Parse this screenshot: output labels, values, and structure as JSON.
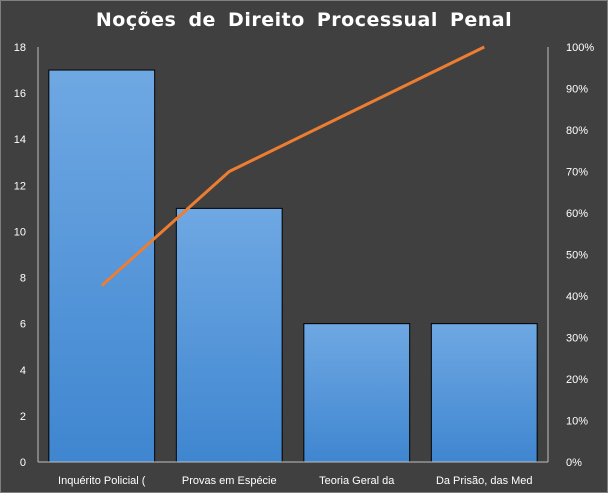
{
  "chart_data": {
    "type": "bar",
    "title": "Noções de Direito Processual Penal",
    "categories": [
      "Inquérito Policial (",
      "Provas em Espécie",
      "Teoria Geral da",
      "Da Prisão, das Med"
    ],
    "series": [
      {
        "type": "bar",
        "axis": "left",
        "values": [
          17,
          11,
          6,
          6
        ]
      },
      {
        "type": "line",
        "axis": "right",
        "values": [
          42.5,
          70,
          85,
          100
        ]
      }
    ],
    "ylim": [
      0,
      18
    ],
    "yticks": [
      0,
      2,
      4,
      6,
      8,
      10,
      12,
      14,
      16,
      18
    ],
    "y2lim": [
      0,
      100
    ],
    "y2ticks": [
      "0%",
      "10%",
      "20%",
      "30%",
      "40%",
      "50%",
      "60%",
      "70%",
      "80%",
      "90%",
      "100%"
    ],
    "colors": {
      "bar": "#4a90d9",
      "line": "#ed7d31"
    },
    "grid": false
  }
}
